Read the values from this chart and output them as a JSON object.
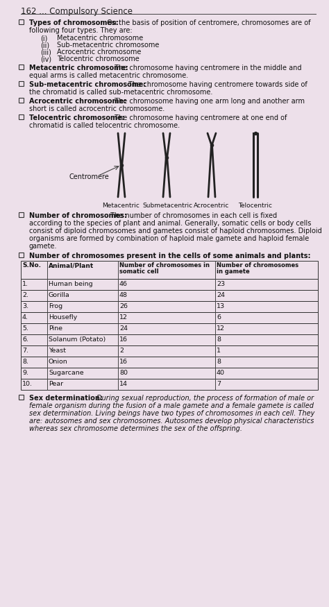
{
  "page_number": "162 ... Compulsory Science",
  "bg_color": "#ede0ea",
  "title_bold": "Types of chromosomes:",
  "title_rest": " On the basis of position of centromere, chromosomes are of",
  "title_rest2": "following four types. They are:",
  "list_items": [
    [
      "(i)",
      "Metacentric chromosome"
    ],
    [
      "(ii)",
      "Sub-metacentric chromosome"
    ],
    [
      "(iii)",
      "Acrocentric chromosome"
    ],
    [
      "(iv)",
      "Telocentric chromosome"
    ]
  ],
  "def1_bold": "Metacentric chromosome:",
  "def1_rest": " The chromosome having centromere in the middle and",
  "def1_rest2": "equal arms is called metacentric chromosome.",
  "def2_bold": "Sub-metacentric chromosome:",
  "def2_rest": " The chromosome having centromere towards side of",
  "def2_rest2": "the chromatid is called sub-metacentric chromosome.",
  "def3_bold": "Acrocentric chromosome:",
  "def3_rest": " The chromosome having one arm long and another arm",
  "def3_rest2": "short is called acrocentric chromosome.",
  "def4_bold": "Telocentric chromosome:",
  "def4_rest": " The chromosome having centromere at one end of",
  "def4_rest2": "chromatid is called telocentric chromosome.",
  "chrom_labels": [
    "Metacentric",
    "Submetacentric",
    "Acrocentric",
    "Telocentric"
  ],
  "centromere_label": "Centromere",
  "num_bold": "Number of chromosomes:",
  "num_rest": " The number of chromosomes in each cell is fixed",
  "num_rest2": "according to the species of plant and animal. Generally, somatic cells or body cells",
  "num_rest3": "consist of diploid chromosomes and gametes consist of haploid chromosomes. Diploid",
  "num_rest4": "organisms are formed by combination of haploid male gamete and haploid female",
  "num_rest5": "gamete.",
  "tbl_bold": "Number of chromosomes present in the cells of some animals and plants:",
  "table_col1": "S.No.",
  "table_col2": "Animal/Plant",
  "table_col3a": "Number of chromosomes in",
  "table_col3b": "somatic cell",
  "table_col4a": "Number of chromosomes",
  "table_col4b": "in gamete",
  "table_data": [
    [
      "1.",
      "Human being",
      "46",
      "23"
    ],
    [
      "2.",
      "Gorilla",
      "48",
      "24"
    ],
    [
      "3.",
      "Frog",
      "26",
      "13"
    ],
    [
      "4.",
      "Housefly",
      "12",
      "6"
    ],
    [
      "5.",
      "Pine",
      "24",
      "12"
    ],
    [
      "6.",
      "Solanum (Potato)",
      "16",
      "8"
    ],
    [
      "7.",
      "Yeast",
      "2",
      "1"
    ],
    [
      "8.",
      "Onion",
      "16",
      "8"
    ],
    [
      "9.",
      "Sugarcane",
      "80",
      "40"
    ],
    [
      "10.",
      "Pear",
      "14",
      "7"
    ]
  ],
  "sex_bold": "Sex determination:",
  "sex_rest": " During sexual reproduction, the process of formation of male or",
  "sex_rest2": "female organism during the fusion of a male gamete and a female gamete is called",
  "sex_rest3": "sex determination. Living beings have two types of chromosomes in each cell. They",
  "sex_rest4": "are: autosomes and sex chromosomes. Autosomes develop physical characteristics",
  "sex_rest5": "whereas sex chromosome determines the sex of the offspring."
}
